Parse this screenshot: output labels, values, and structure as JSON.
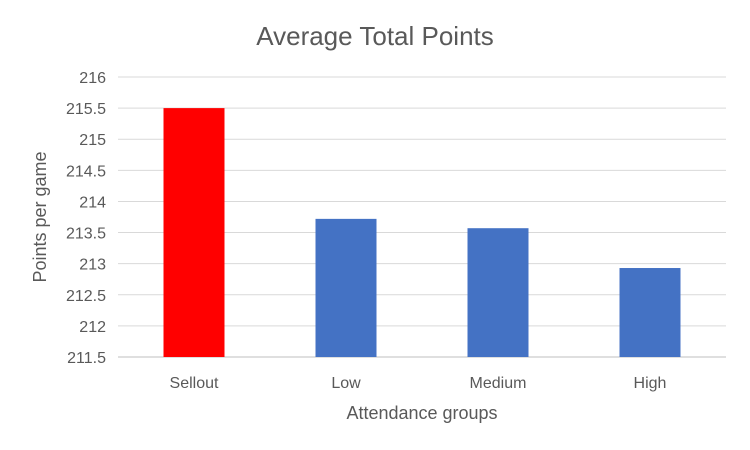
{
  "chart_data": {
    "type": "bar",
    "title": "Average Total Points",
    "xlabel": "Attendance groups",
    "ylabel": "Points per game",
    "categories": [
      "Sellout",
      "Low",
      "Medium",
      "High"
    ],
    "values": [
      215.5,
      213.72,
      213.57,
      212.93
    ],
    "bar_colors": [
      "#ff0000",
      "#4472c4",
      "#4472c4",
      "#4472c4"
    ],
    "ylim": [
      211.5,
      216
    ],
    "yticks": [
      "216",
      "215.5",
      "215",
      "214.5",
      "214",
      "213.5",
      "213",
      "212.5",
      "212",
      "211.5"
    ],
    "grid": true,
    "legend": "none"
  }
}
